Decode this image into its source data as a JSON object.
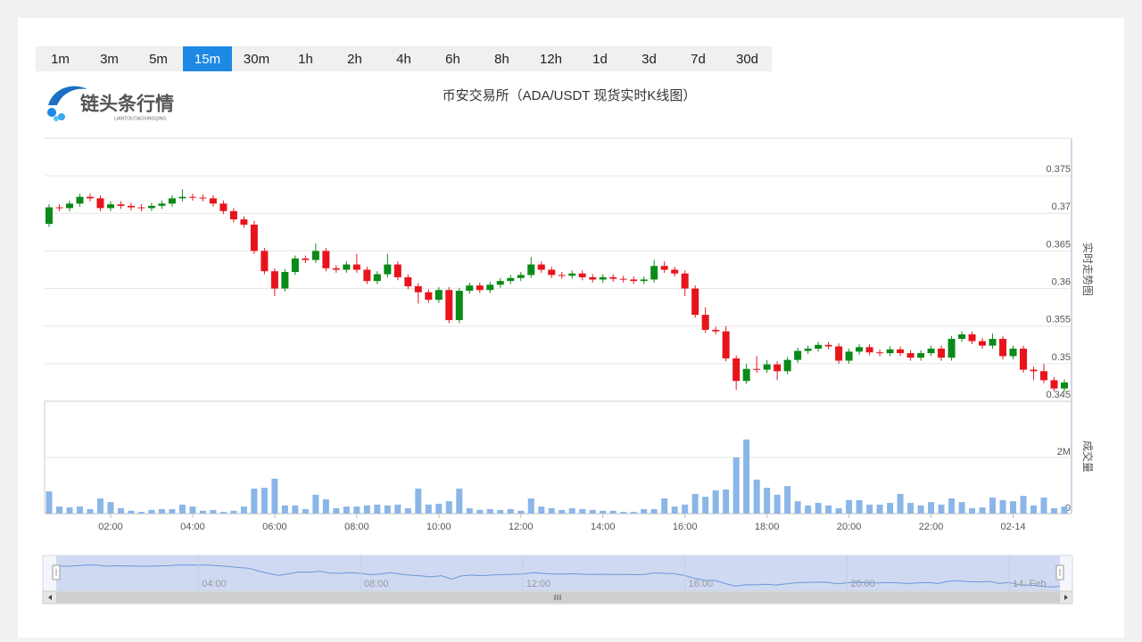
{
  "toolbar": {
    "intervals": [
      "1m",
      "3m",
      "5m",
      "15m",
      "30m",
      "1h",
      "2h",
      "4h",
      "6h",
      "8h",
      "12h",
      "1d",
      "3d",
      "7d",
      "30d"
    ],
    "active": "15m"
  },
  "logo": {
    "name": "链头条行情",
    "subtitle": "LIANTOUTIAOXINGQING"
  },
  "chart_data": {
    "type": "candlestick",
    "title": "币安交易所（ADA/USDT 现货实时K线图）",
    "categories": [
      null,
      null,
      null,
      null,
      null,
      null,
      "02:00",
      null,
      null,
      null,
      null,
      null,
      null,
      null,
      "04:00",
      null,
      null,
      null,
      null,
      null,
      null,
      null,
      "06:00",
      null,
      null,
      null,
      null,
      null,
      null,
      null,
      "08:00",
      null,
      null,
      null,
      null,
      null,
      null,
      null,
      "10:00",
      null,
      null,
      null,
      null,
      null,
      null,
      null,
      "12:00",
      null,
      null,
      null,
      null,
      null,
      null,
      null,
      "14:00",
      null,
      null,
      null,
      null,
      null,
      null,
      null,
      "16:00",
      null,
      null,
      null,
      null,
      null,
      null,
      null,
      "18:00",
      null,
      null,
      null,
      null,
      null,
      null,
      null,
      "20:00",
      null,
      null,
      null,
      null,
      null,
      null,
      null,
      "22:00",
      null,
      null,
      null,
      null,
      null,
      null,
      null,
      "02-14",
      null,
      null,
      null,
      null,
      null
    ],
    "open": [
      0.3686,
      0.3708,
      0.3707,
      0.3713,
      0.3722,
      0.372,
      0.3707,
      0.3712,
      0.371,
      0.3708,
      0.3707,
      0.371,
      0.3713,
      0.372,
      0.3722,
      0.3721,
      0.372,
      0.3713,
      0.3703,
      0.3692,
      0.3685,
      0.365,
      0.3623,
      0.36,
      0.3622,
      0.364,
      0.3638,
      0.365,
      0.3627,
      0.3625,
      0.3632,
      0.3625,
      0.361,
      0.3619,
      0.3632,
      0.3615,
      0.3603,
      0.3595,
      0.3585,
      0.3598,
      0.3558,
      0.3597,
      0.3604,
      0.3598,
      0.3605,
      0.361,
      0.3614,
      0.3618,
      0.3632,
      0.3625,
      0.3618,
      0.3617,
      0.362,
      0.3615,
      0.3612,
      0.3615,
      0.3613,
      0.3612,
      0.361,
      0.3612,
      0.363,
      0.3625,
      0.362,
      0.36,
      0.3565,
      0.3545,
      0.3543,
      0.3507,
      0.3477,
      0.3493,
      0.3492,
      0.3499,
      0.349,
      0.3505,
      0.3517,
      0.352,
      0.3525,
      0.3523,
      0.3504,
      0.3516,
      0.3522,
      0.3515,
      0.3514,
      0.3519,
      0.3514,
      0.3508,
      0.3514,
      0.352,
      0.3508,
      0.3533,
      0.3539,
      0.353,
      0.3524,
      0.3533,
      0.351,
      0.352,
      0.3492,
      0.349,
      0.3478,
      0.3467
    ],
    "high": [
      0.3712,
      0.3712,
      0.3717,
      0.3726,
      0.3726,
      0.3724,
      0.3716,
      0.3716,
      0.3714,
      0.3712,
      0.3714,
      0.3717,
      0.3724,
      0.3732,
      0.3726,
      0.3725,
      0.3724,
      0.3717,
      0.3707,
      0.3696,
      0.369,
      0.3654,
      0.3627,
      0.3626,
      0.3644,
      0.3644,
      0.366,
      0.3654,
      0.3631,
      0.3636,
      0.3646,
      0.3629,
      0.3623,
      0.3646,
      0.3636,
      0.3619,
      0.3607,
      0.3599,
      0.3602,
      0.3602,
      0.3601,
      0.3608,
      0.3608,
      0.3609,
      0.3614,
      0.3618,
      0.3622,
      0.3642,
      0.3636,
      0.3629,
      0.3622,
      0.3624,
      0.3624,
      0.3619,
      0.3619,
      0.3619,
      0.3617,
      0.3616,
      0.3616,
      0.3638,
      0.3636,
      0.3629,
      0.3624,
      0.3604,
      0.3575,
      0.3549,
      0.355,
      0.3511,
      0.35,
      0.351,
      0.3505,
      0.3503,
      0.3509,
      0.3521,
      0.3524,
      0.3529,
      0.3529,
      0.3527,
      0.352,
      0.3526,
      0.3526,
      0.3519,
      0.3523,
      0.3523,
      0.3518,
      0.3518,
      0.3524,
      0.3524,
      0.3537,
      0.3543,
      0.3543,
      0.3534,
      0.354,
      0.3537,
      0.3524,
      0.3524,
      0.3496,
      0.35,
      0.3482,
      0.3479
    ],
    "low": [
      0.3682,
      0.3703,
      0.3703,
      0.3709,
      0.3716,
      0.3703,
      0.3703,
      0.3706,
      0.3704,
      0.3703,
      0.3703,
      0.3706,
      0.3709,
      0.3716,
      0.3717,
      0.3716,
      0.3709,
      0.3699,
      0.3688,
      0.3681,
      0.3646,
      0.3619,
      0.359,
      0.3596,
      0.3618,
      0.3634,
      0.3634,
      0.3623,
      0.3621,
      0.3621,
      0.3621,
      0.3606,
      0.3606,
      0.3615,
      0.3611,
      0.3599,
      0.358,
      0.3581,
      0.3581,
      0.3554,
      0.3554,
      0.3593,
      0.3594,
      0.3594,
      0.3601,
      0.3606,
      0.361,
      0.3614,
      0.3621,
      0.3614,
      0.3613,
      0.3613,
      0.3611,
      0.3608,
      0.3608,
      0.3609,
      0.3608,
      0.3606,
      0.3606,
      0.3608,
      0.3621,
      0.3616,
      0.359,
      0.3561,
      0.3541,
      0.3539,
      0.3503,
      0.3465,
      0.3473,
      0.3488,
      0.3488,
      0.3478,
      0.3486,
      0.3501,
      0.3513,
      0.3516,
      0.3519,
      0.35,
      0.35,
      0.3512,
      0.3511,
      0.351,
      0.351,
      0.351,
      0.3504,
      0.3504,
      0.351,
      0.3504,
      0.3504,
      0.3529,
      0.3526,
      0.352,
      0.352,
      0.3506,
      0.3506,
      0.3488,
      0.3478,
      0.3474,
      0.3463,
      0.3463
    ],
    "close": [
      0.3708,
      0.3707,
      0.3713,
      0.3722,
      0.372,
      0.3707,
      0.3712,
      0.371,
      0.3708,
      0.3707,
      0.371,
      0.3713,
      0.372,
      0.3722,
      0.3721,
      0.372,
      0.3713,
      0.3703,
      0.3692,
      0.3685,
      0.365,
      0.3623,
      0.36,
      0.3622,
      0.364,
      0.3638,
      0.365,
      0.3627,
      0.3625,
      0.3632,
      0.3625,
      0.361,
      0.3619,
      0.3632,
      0.3615,
      0.3603,
      0.3595,
      0.3585,
      0.3598,
      0.3558,
      0.3597,
      0.3604,
      0.3598,
      0.3605,
      0.361,
      0.3614,
      0.3618,
      0.3632,
      0.3625,
      0.3618,
      0.3617,
      0.362,
      0.3615,
      0.3612,
      0.3615,
      0.3613,
      0.3612,
      0.361,
      0.3612,
      0.363,
      0.3625,
      0.362,
      0.36,
      0.3565,
      0.3545,
      0.3543,
      0.3507,
      0.3477,
      0.3493,
      0.3492,
      0.3499,
      0.349,
      0.3505,
      0.3517,
      0.352,
      0.3525,
      0.3523,
      0.3504,
      0.3516,
      0.3522,
      0.3515,
      0.3514,
      0.3519,
      0.3514,
      0.3508,
      0.3514,
      0.352,
      0.3508,
      0.3533,
      0.3539,
      0.353,
      0.3524,
      0.3533,
      0.351,
      0.352,
      0.3492,
      0.349,
      0.3478,
      0.3467,
      0.3475
    ],
    "volume": [
      790000,
      250000,
      220000,
      250000,
      160000,
      540000,
      410000,
      190000,
      100000,
      60000,
      130000,
      160000,
      160000,
      320000,
      250000,
      100000,
      130000,
      60000,
      100000,
      250000,
      890000,
      920000,
      1240000,
      290000,
      290000,
      160000,
      670000,
      510000,
      190000,
      250000,
      250000,
      290000,
      320000,
      290000,
      320000,
      190000,
      890000,
      320000,
      350000,
      440000,
      890000,
      190000,
      130000,
      160000,
      130000,
      160000,
      100000,
      540000,
      250000,
      190000,
      130000,
      190000,
      160000,
      130000,
      100000,
      100000,
      60000,
      60000,
      160000,
      160000,
      540000,
      250000,
      320000,
      700000,
      600000,
      830000,
      860000,
      2000000,
      2640000,
      1210000,
      920000,
      670000,
      980000,
      440000,
      290000,
      380000,
      290000,
      190000,
      480000,
      480000,
      320000,
      320000,
      380000,
      700000,
      380000,
      290000,
      410000,
      320000,
      540000,
      410000,
      190000,
      220000,
      570000,
      480000,
      440000,
      630000,
      290000,
      570000,
      190000,
      250000
    ],
    "up_color": "#0a8a18",
    "down_color": "#e8141c",
    "volume_color": "#8ab6e8",
    "ylim": [
      0.345,
      0.38
    ],
    "yticks": [
      0.345,
      0.35,
      0.355,
      0.36,
      0.365,
      0.37,
      0.375
    ],
    "y_label": "实时走势图",
    "volume_ylim": [
      0,
      4000000
    ],
    "volume_yticks": [
      0,
      {
        "value": 2000000,
        "label": "2M"
      }
    ],
    "volume_label": "成交量",
    "grid": true,
    "zoom_categories": [
      null,
      null,
      null,
      null,
      null,
      null,
      null,
      null,
      null,
      null,
      null,
      null,
      null,
      null,
      "04:00",
      null,
      null,
      null,
      null,
      null,
      null,
      null,
      null,
      null,
      null,
      null,
      null,
      null,
      null,
      null,
      "08:00",
      null,
      null,
      null,
      null,
      null,
      null,
      null,
      null,
      null,
      null,
      null,
      null,
      null,
      null,
      null,
      "12:00",
      null,
      null,
      null,
      null,
      null,
      null,
      null,
      null,
      null,
      null,
      null,
      null,
      null,
      null,
      null,
      "16:00",
      null,
      null,
      null,
      null,
      null,
      null,
      null,
      null,
      null,
      null,
      null,
      null,
      null,
      null,
      null,
      "20:00",
      null,
      null,
      null,
      null,
      null,
      null,
      null,
      null,
      null,
      null,
      null,
      null,
      null,
      null,
      null,
      "14. Feb",
      null,
      null,
      null,
      null,
      null
    ]
  }
}
